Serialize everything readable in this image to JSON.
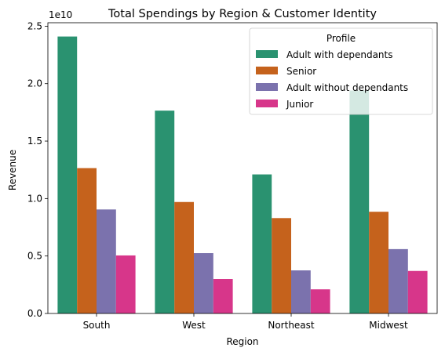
{
  "chart_data": {
    "type": "bar",
    "title": "Total Spendings by Region & Customer Identity",
    "xlabel": "Region",
    "ylabel": "Revenue",
    "y_offset_label": "1e10",
    "categories": [
      "South",
      "West",
      "Northeast",
      "Midwest"
    ],
    "ylim": [
      0,
      2.53
    ],
    "yticks": [
      0.0,
      0.5,
      1.0,
      1.5,
      2.0,
      2.5
    ],
    "ytick_labels": [
      "0.0",
      "0.5",
      "1.0",
      "1.5",
      "2.0",
      "2.5"
    ],
    "grid": false,
    "legend": {
      "title": "Profile",
      "placement": "top-right"
    },
    "series": [
      {
        "name": "Adult with dependants",
        "color": "#2a9270",
        "values": [
          2.41,
          1.765,
          1.21,
          1.94
        ]
      },
      {
        "name": "Senior",
        "color": "#c5621c",
        "values": [
          1.265,
          0.97,
          0.83,
          0.885
        ]
      },
      {
        "name": "Adult without dependants",
        "color": "#7b72ad",
        "values": [
          0.905,
          0.525,
          0.375,
          0.56
        ]
      },
      {
        "name": "Junior",
        "color": "#d7368a",
        "values": [
          0.505,
          0.3,
          0.21,
          0.37
        ]
      }
    ]
  }
}
